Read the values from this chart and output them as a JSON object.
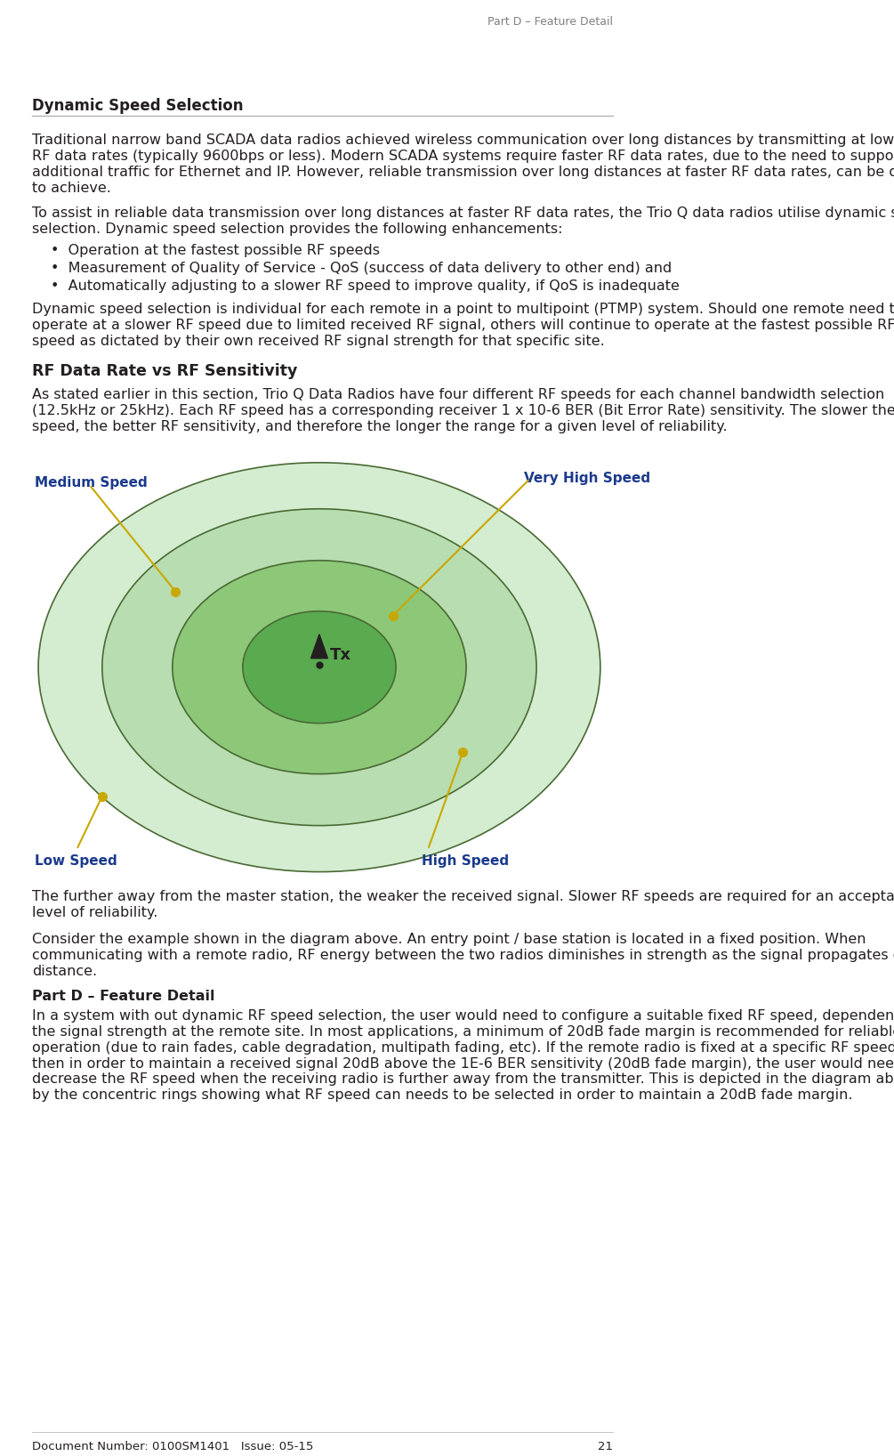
{
  "page_title_right": "Part D – Feature Detail",
  "page_number": "21",
  "doc_number": "Document Number: 0100SM1401   Issue: 05-15",
  "section_title": "Dynamic Speed Selection",
  "para1": "Traditional narrow band SCADA data radios achieved wireless communication over long distances by transmitting at low RF data rates (typically 9600bps or less). Modern SCADA systems require faster RF data rates, due to the need to support additional traffic for Ethernet and IP. However, reliable transmission over long distances at faster RF data rates, can be difficult to achieve.",
  "para2": "To assist in reliable data transmission over long distances at faster RF data rates, the Trio Q data radios utilise dynamic speed selection. Dynamic speed selection provides the following enhancements:",
  "bullets": [
    "Operation at the fastest possible RF speeds",
    "Measurement of Quality of Service - QoS (success of data delivery to other end) and",
    "Automatically adjusting to a slower RF speed to improve quality, if QoS is inadequate"
  ],
  "para3": "Dynamic speed selection is individual for each remote in a point to multipoint (PTMP) system. Should one remote need to operate at a slower RF speed due to limited received RF signal, others will continue to operate at the fastest possible RF speed as dictated by their own received RF signal strength for that specific site.",
  "subsection_title": "RF Data Rate vs RF Sensitivity",
  "para4": "As stated earlier in this section, Trio Q Data Radios have four different RF speeds for each channel bandwidth selection (12.5kHz or 25kHz). Each RF speed has a corresponding receiver 1 x 10-6 BER (Bit Error Rate) sensitivity. The slower the RF speed, the better RF sensitivity, and therefore the longer the range for a given level of reliability.",
  "diagram_labels": {
    "very_high_speed": "Very High Speed",
    "high_speed": "High Speed",
    "medium_speed": "Medium Speed",
    "low_speed": "Low Speed",
    "tx": "Tx"
  },
  "diagram_caption": "The further away from the master station, the weaker the received signal. Slower RF speeds are required for an acceptable level of reliability",
  "para5": "Consider the example shown in the diagram above. An entry point / base station is located in a fixed position. When communicating with a remote radio, RF energy between the two radios diminishes in strength as the signal propagates over distance.",
  "part_d_label": "Part D – Feature Detail",
  "para6": "In a system with out dynamic RF speed selection, the user would need to configure a suitable fixed RF speed, dependent on the signal strength at the remote site. In most applications, a minimum of 20dB fade margin is recommended for reliable operation (due to rain fades, cable degradation, multipath fading, etc). If the remote radio is fixed at a specific RF speed, then in order to maintain a received signal 20dB above the 1E-6 BER sensitivity (20dB fade margin), the user would need to decrease the RF speed when the receiving radio is further away from the transmitter. This is depicted in the diagram above by the concentric rings showing what RF speed can needs to be selected in order to maintain a 20dB fade margin.",
  "bg_color": "#ffffff",
  "text_color": "#231f20",
  "header_color": "#808080",
  "section_title_color": "#231f20",
  "subsection_color": "#231f20",
  "ring_colors": [
    "#c8e6c0",
    "#a8d898",
    "#88c870",
    "#68b848"
  ],
  "ring_outline_color": "#5a6e3a",
  "label_colors": {
    "very_high_speed": "#1a3a8c",
    "high_speed": "#1a3a8c",
    "medium_speed": "#1a3a8c",
    "low_speed": "#1a3a8c"
  },
  "dot_color": "#c8a800",
  "tx_triangle_color": "#231f20",
  "line_color": "#c8a800"
}
